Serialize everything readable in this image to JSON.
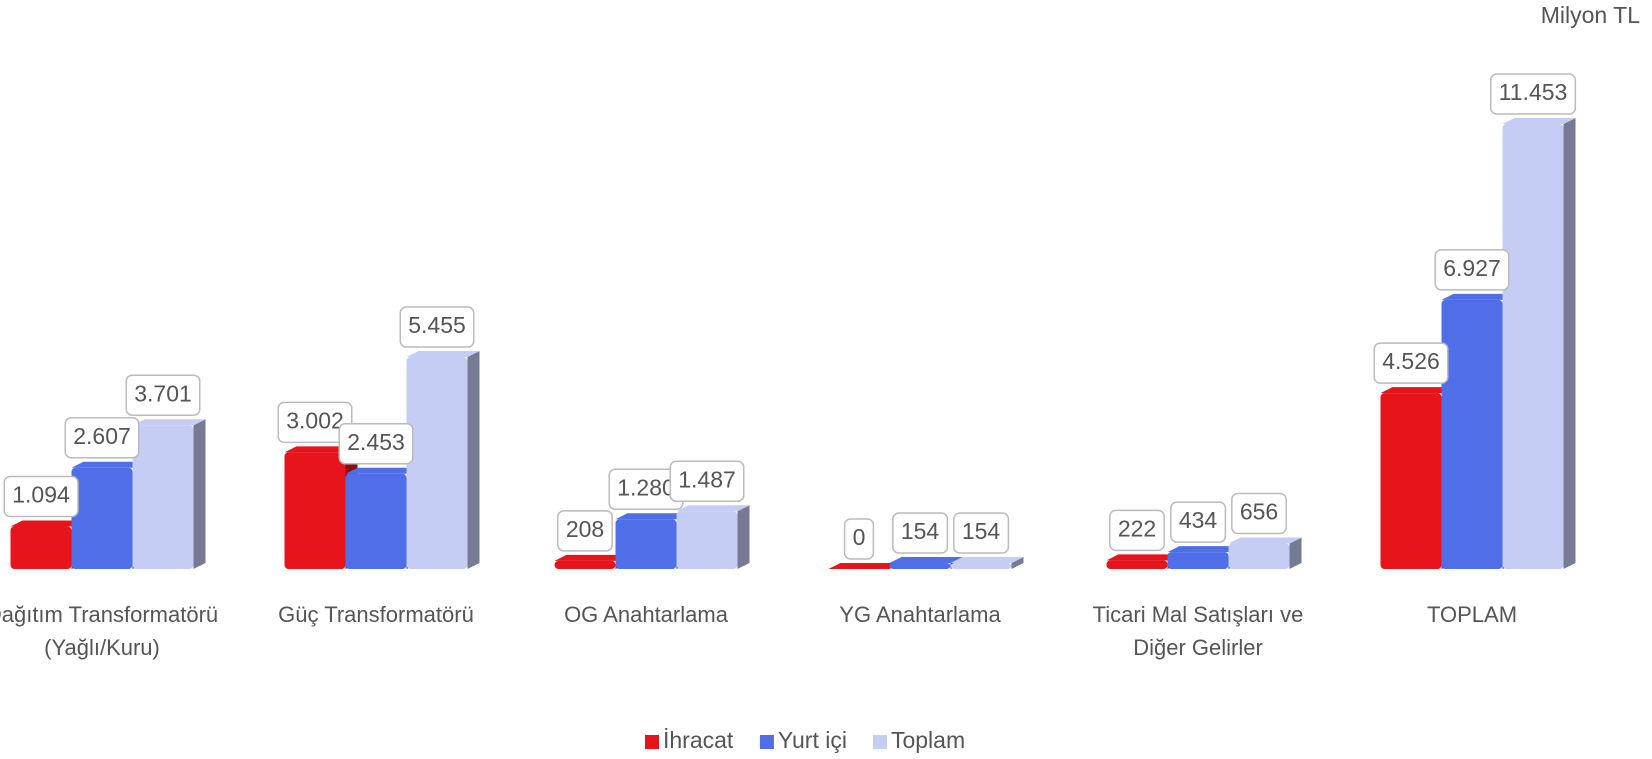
{
  "chart_data": {
    "type": "bar",
    "unit_label": "Milyon TL",
    "categories": [
      "Dağıtım Transformatörü (Yağlı/Kuru)",
      "Güç Transformatörü",
      "OG Anahtarlama",
      "YG Anahtarlama",
      "Ticari Mal Satışları ve Diğer Gelirler",
      "TOPLAM"
    ],
    "series": [
      {
        "name": "İhracat",
        "color": "#e8141c",
        "values": [
          1094,
          3002,
          208,
          0,
          222,
          4526
        ],
        "value_labels": [
          "1.094",
          "3.002",
          "208",
          "0",
          "222",
          "4.526"
        ]
      },
      {
        "name": "Yurt içi",
        "color": "#4f6ee8",
        "values": [
          2607,
          2453,
          1280,
          154,
          434,
          6927
        ],
        "value_labels": [
          "2.607",
          "2.453",
          "1.280",
          "154",
          "434",
          "6.927"
        ]
      },
      {
        "name": "Toplam",
        "color": "#c5cdf5",
        "values": [
          3701,
          5455,
          1487,
          154,
          656,
          11453
        ],
        "value_labels": [
          "3.701",
          "5.455",
          "1.487",
          "154",
          "656",
          "11.453"
        ]
      }
    ],
    "legend": "bottom"
  }
}
